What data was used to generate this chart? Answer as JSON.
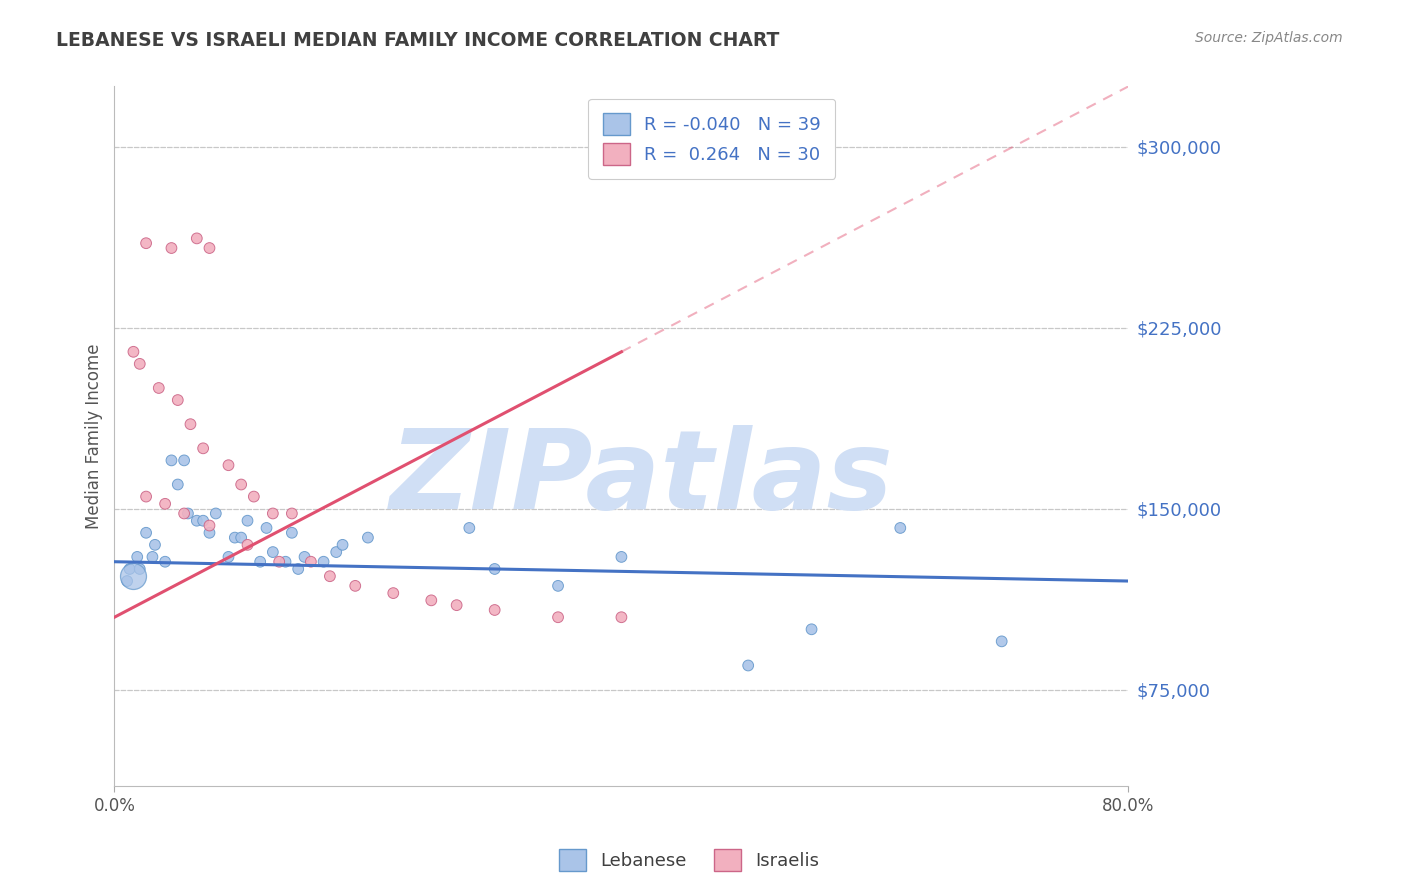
{
  "title": "LEBANESE VS ISRAELI MEDIAN FAMILY INCOME CORRELATION CHART",
  "source": "Source: ZipAtlas.com",
  "ylabel": "Median Family Income",
  "y_ticks": [
    75000,
    150000,
    225000,
    300000
  ],
  "y_tick_labels": [
    "$75,000",
    "$150,000",
    "$225,000",
    "$300,000"
  ],
  "x_range": [
    0.0,
    80.0
  ],
  "y_range": [
    35000,
    325000
  ],
  "legend_blue_r": "-0.040",
  "legend_blue_n": "39",
  "legend_pink_r": "0.264",
  "legend_pink_n": "30",
  "blue_color": "#aac4e8",
  "blue_edge": "#6699cc",
  "pink_color": "#f2b0bf",
  "pink_edge": "#cc6688",
  "trend_blue": "#4472c4",
  "trend_pink": "#e05070",
  "watermark": "ZIPatlas",
  "watermark_color": "#d0dff5",
  "background_color": "#ffffff",
  "grid_color": "#c8c8c8",
  "title_color": "#404040",
  "legend_text_color": "#4472c4",
  "right_label_color": "#4472c4",
  "blue_scatter_x": [
    1.2,
    1.8,
    2.5,
    3.2,
    4.5,
    5.0,
    5.5,
    6.5,
    7.0,
    8.0,
    9.5,
    10.5,
    11.5,
    12.5,
    13.5,
    14.5,
    15.0,
    16.5,
    17.5,
    18.0,
    1.0,
    2.0,
    3.0,
    4.0,
    5.8,
    7.5,
    9.0,
    10.0,
    12.0,
    14.0,
    20.0,
    28.0,
    30.0,
    35.0,
    40.0,
    50.0,
    55.0,
    62.0,
    70.0
  ],
  "blue_scatter_y": [
    125000,
    130000,
    140000,
    135000,
    170000,
    160000,
    170000,
    145000,
    145000,
    148000,
    138000,
    145000,
    128000,
    132000,
    128000,
    125000,
    130000,
    128000,
    132000,
    135000,
    120000,
    125000,
    130000,
    128000,
    148000,
    140000,
    130000,
    138000,
    142000,
    140000,
    138000,
    142000,
    125000,
    118000,
    130000,
    85000,
    100000,
    142000,
    95000
  ],
  "blue_scatter_s": [
    60,
    60,
    60,
    60,
    60,
    60,
    60,
    60,
    60,
    60,
    60,
    60,
    60,
    60,
    60,
    60,
    60,
    60,
    60,
    60,
    60,
    60,
    60,
    60,
    60,
    60,
    60,
    60,
    60,
    60,
    60,
    60,
    60,
    60,
    60,
    60,
    60,
    60,
    60
  ],
  "pink_scatter_x": [
    2.5,
    4.5,
    6.5,
    7.5,
    1.5,
    2.0,
    3.5,
    5.0,
    6.0,
    7.0,
    9.0,
    10.0,
    11.0,
    12.5,
    14.0,
    2.5,
    4.0,
    5.5,
    7.5,
    10.5,
    13.0,
    15.5,
    17.0,
    19.0,
    22.0,
    25.0,
    27.0,
    30.0,
    35.0,
    40.0
  ],
  "pink_scatter_y": [
    260000,
    258000,
    262000,
    258000,
    215000,
    210000,
    200000,
    195000,
    185000,
    175000,
    168000,
    160000,
    155000,
    148000,
    148000,
    155000,
    152000,
    148000,
    143000,
    135000,
    128000,
    128000,
    122000,
    118000,
    115000,
    112000,
    110000,
    108000,
    105000,
    105000
  ],
  "pink_scatter_s": [
    60,
    60,
    60,
    60,
    60,
    60,
    60,
    60,
    60,
    60,
    60,
    60,
    60,
    60,
    60,
    60,
    60,
    60,
    60,
    60,
    60,
    60,
    60,
    60,
    60,
    60,
    60,
    60,
    60,
    60
  ],
  "big_blue_x": 1.5,
  "big_blue_y": 122000,
  "big_blue_s": 350
}
